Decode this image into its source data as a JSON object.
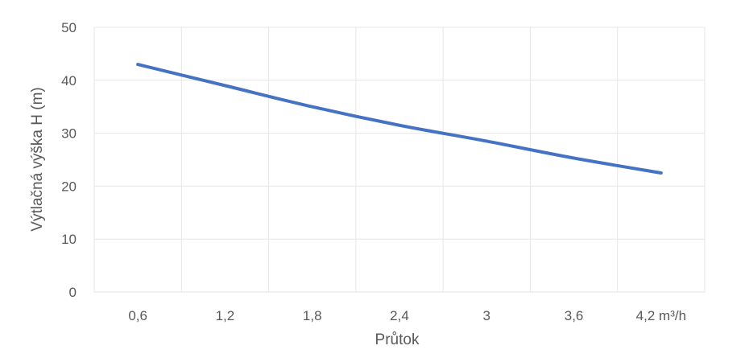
{
  "chart_data": {
    "type": "line",
    "categories": [
      "0,6",
      "1,2",
      "1,8",
      "2,4",
      "3",
      "3,6",
      "4,2 m³/h"
    ],
    "series": [
      {
        "values": [
          43,
          39,
          35,
          31.5,
          28.5,
          25.3,
          22.5
        ]
      }
    ],
    "xlabel": "Průtok",
    "ylabel": "Výtlačná výška H (m)",
    "ylim": [
      0,
      50
    ],
    "yticks": [
      0,
      10,
      20,
      30,
      40,
      50
    ],
    "grid": true,
    "legend": "none",
    "colors": {
      "series": "#4472c4",
      "grid": "#e6e6e6",
      "text": "#595959"
    }
  }
}
